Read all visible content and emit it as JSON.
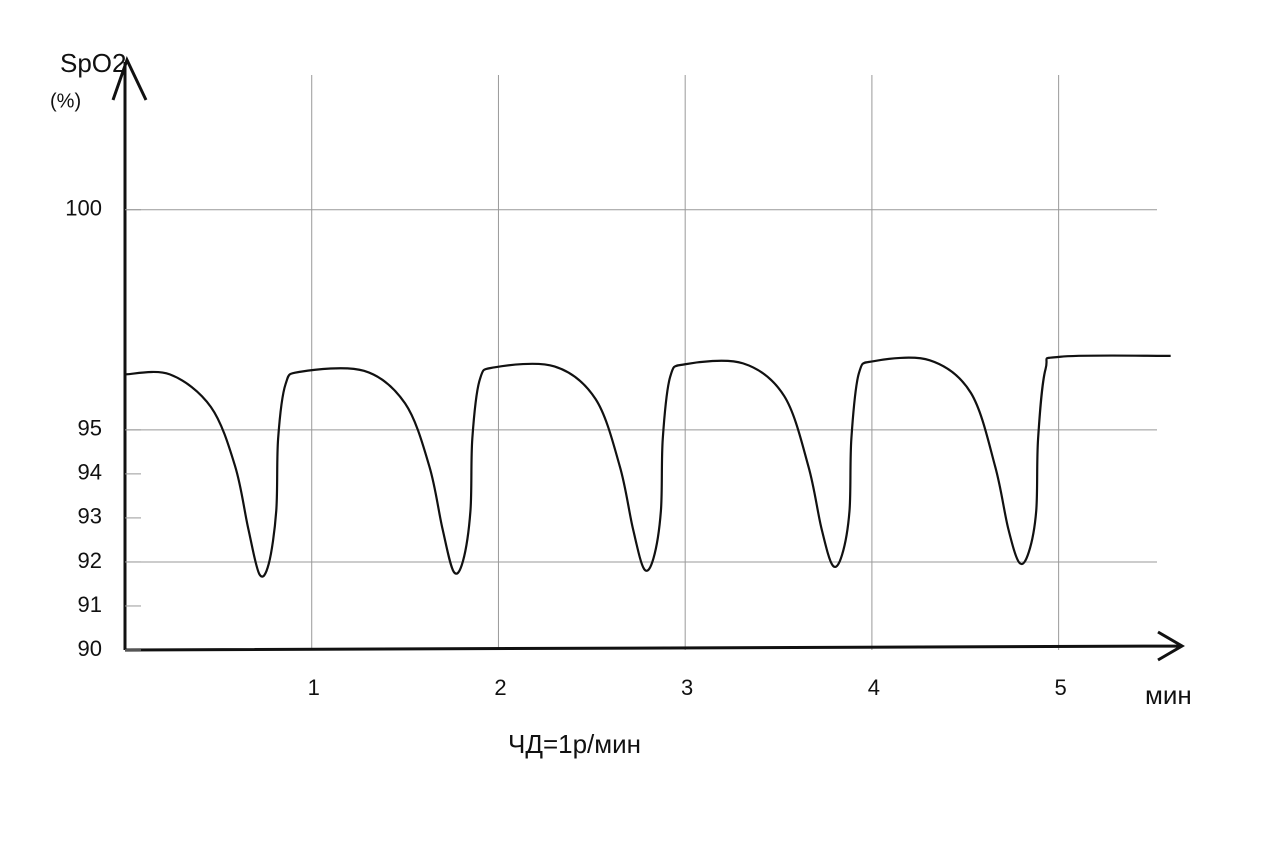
{
  "chart_data": {
    "type": "line",
    "y_label": "SpO2",
    "y_unit": "(%)",
    "x_label": "мин",
    "annotation": "ЧД=1р/мин",
    "x": [
      0,
      0.24,
      0.46,
      0.59,
      0.66,
      0.72,
      0.77,
      0.81,
      0.82,
      0.86,
      0.94,
      1.28,
      1.5,
      1.63,
      1.7,
      1.76,
      1.81,
      1.85,
      1.86,
      1.9,
      1.98,
      2.3,
      2.52,
      2.65,
      2.72,
      2.78,
      2.83,
      2.87,
      2.88,
      2.92,
      3.0,
      3.31,
      3.53,
      3.66,
      3.73,
      3.79,
      3.84,
      3.88,
      3.89,
      3.93,
      4.01,
      4.31,
      4.53,
      4.66,
      4.73,
      4.79,
      4.84,
      4.88,
      4.89,
      4.93,
      5.01,
      5.6
    ],
    "series": [
      {
        "color": "#111111",
        "values": [
          96.26,
          96.26,
          95.52,
          94.17,
          92.76,
          91.72,
          91.96,
          93.16,
          94.8,
          96.04,
          96.32,
          96.34,
          95.6,
          94.17,
          92.76,
          91.78,
          92.02,
          93.16,
          94.8,
          96.14,
          96.42,
          96.44,
          95.7,
          94.17,
          92.76,
          91.84,
          92.08,
          93.16,
          94.8,
          96.21,
          96.49,
          96.51,
          95.77,
          94.17,
          92.76,
          91.92,
          92.16,
          93.16,
          94.8,
          96.28,
          96.56,
          96.58,
          95.84,
          94.17,
          92.76,
          91.98,
          92.22,
          93.16,
          94.8,
          96.38,
          96.66,
          96.68
        ]
      }
    ],
    "xlim": [
      0,
      5.65
    ],
    "xticks": [
      1,
      2,
      3,
      4,
      5
    ],
    "ylim": [
      90,
      103.4
    ],
    "yticks": [
      90,
      91,
      92,
      93,
      94,
      95,
      100
    ],
    "ygrid": [
      92,
      95,
      100
    ],
    "xgrid": true
  }
}
